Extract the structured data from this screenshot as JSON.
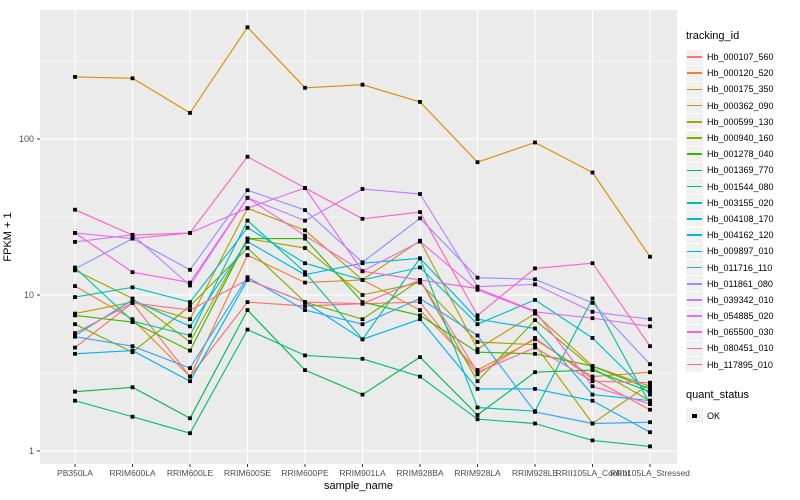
{
  "chart_data": {
    "type": "line",
    "title": "",
    "xlabel": "sample_name",
    "ylabel": "FPKM + 1",
    "yscale": "log10",
    "ylim": [
      0.83,
      672
    ],
    "yticks": [
      1,
      10,
      100
    ],
    "grid": {
      "major": [
        1,
        10,
        100
      ],
      "minor": [
        3.162,
        31.62,
        316.2
      ],
      "vertical_major": true
    },
    "legend_title": "tracking_id",
    "legend2_title": "quant_status",
    "legend2_items": [
      {
        "label": "OK",
        "marker": "black-square"
      }
    ],
    "categories": [
      "PB350LA",
      "RRIM600LA",
      "RRIM600LE",
      "RRIM600SE",
      "RRIM600PE",
      "RRIM901LA",
      "RRIM928BA",
      "RRIM928LA",
      "RRIM928LE",
      "RRII105LA_Control",
      "RRII105LA_Stressed"
    ],
    "series": [
      {
        "name": "Hb_000107_560",
        "color": "#F8766D",
        "values": [
          4.6,
          8.9,
          3.0,
          9.0,
          8.5,
          8.8,
          9.0,
          3.1,
          5.3,
          2.9,
          1.84
        ]
      },
      {
        "name": "Hb_000120_520",
        "color": "#EA8331",
        "values": [
          11.4,
          7.0,
          3.0,
          18.0,
          12.0,
          12.5,
          8.0,
          3.3,
          5.2,
          3.0,
          3.2
        ]
      },
      {
        "name": "Hb_000175_350",
        "color": "#D89000",
        "values": [
          250,
          245,
          147,
          520,
          213,
          223,
          173,
          71,
          95,
          61,
          17.6
        ]
      },
      {
        "name": "Hb_000362_090",
        "color": "#C09B00",
        "values": [
          7.6,
          9.0,
          7.0,
          36.0,
          26.0,
          12.5,
          22.3,
          4.5,
          7.6,
          3.5,
          2.6
        ]
      },
      {
        "name": "Hb_000599_130",
        "color": "#A3A500",
        "values": [
          14.4,
          9.5,
          5.0,
          23.0,
          20.0,
          10.0,
          12.0,
          5.0,
          4.8,
          1.5,
          2.7
        ]
      },
      {
        "name": "Hb_000940_160",
        "color": "#7CAE00",
        "values": [
          6.5,
          4.3,
          8.5,
          20.0,
          9.0,
          7.0,
          12.5,
          2.8,
          6.9,
          3.4,
          2.1
        ]
      },
      {
        "name": "Hb_001278_040",
        "color": "#39B600",
        "values": [
          7.4,
          6.7,
          4.4,
          23.0,
          23.0,
          9.0,
          7.4,
          4.3,
          4.2,
          3.5,
          2.5
        ]
      },
      {
        "name": "Hb_001369_770",
        "color": "#00BB4E",
        "values": [
          2.4,
          2.56,
          1.62,
          8.0,
          3.3,
          2.3,
          4.0,
          1.7,
          3.2,
          3.3,
          2.4
        ]
      },
      {
        "name": "Hb_001544_080",
        "color": "#00BF7D",
        "values": [
          2.1,
          1.66,
          1.3,
          6.0,
          4.1,
          3.9,
          3.0,
          1.6,
          1.5,
          1.17,
          1.07
        ]
      },
      {
        "name": "Hb_003155_020",
        "color": "#00C1A3",
        "values": [
          15.0,
          6.8,
          5.5,
          30.0,
          14.0,
          5.2,
          17.2,
          1.9,
          1.8,
          9.5,
          2.0
        ]
      },
      {
        "name": "Hb_004108_170",
        "color": "#00BFC4",
        "values": [
          9.7,
          11.2,
          9.0,
          27.0,
          16.0,
          12.5,
          15.0,
          6.5,
          9.3,
          5.3,
          2.3
        ]
      },
      {
        "name": "Hb_004162_120",
        "color": "#00BAE0",
        "values": [
          5.5,
          9.3,
          6.3,
          22.0,
          13.5,
          16.0,
          17.2,
          7.0,
          6.1,
          2.3,
          2.1
        ]
      },
      {
        "name": "Hb_009897_010",
        "color": "#00B0F6",
        "values": [
          4.2,
          4.4,
          2.8,
          12.5,
          9.0,
          5.2,
          7.0,
          2.5,
          2.5,
          2.1,
          1.32
        ]
      },
      {
        "name": "Hb_011716_110",
        "color": "#35A2FF",
        "values": [
          5.4,
          4.7,
          3.4,
          13.0,
          8.0,
          6.5,
          9.5,
          5.5,
          1.78,
          1.5,
          1.53
        ]
      },
      {
        "name": "Hb_011861_080",
        "color": "#9590FF",
        "values": [
          14.7,
          23.0,
          14.5,
          47.0,
          35.0,
          16.2,
          31.0,
          12.9,
          12.6,
          8.9,
          3.6
        ]
      },
      {
        "name": "Hb_039342_010",
        "color": "#C77CFF",
        "values": [
          21.9,
          24.3,
          11.5,
          42.0,
          30.0,
          47.8,
          44.4,
          11.3,
          11.7,
          7.8,
          7.0
        ]
      },
      {
        "name": "Hb_054885_020",
        "color": "#E76BF3",
        "values": [
          25.0,
          23.0,
          25.0,
          36.0,
          48.5,
          14.2,
          22.0,
          10.8,
          7.8,
          7.1,
          6.3
        ]
      },
      {
        "name": "Hb_065500_030",
        "color": "#FA62DB",
        "values": [
          25.0,
          14.0,
          12.0,
          42.0,
          24.0,
          14.2,
          12.5,
          11.0,
          7.9,
          2.6,
          2.0
        ]
      },
      {
        "name": "Hb_080451_010",
        "color": "#FF62BC",
        "values": [
          35.2,
          24.2,
          25.0,
          77.0,
          48.5,
          30.8,
          34.0,
          7.4,
          14.8,
          16.0,
          4.7
        ]
      },
      {
        "name": "Hb_117895_010",
        "color": "#FF6A98",
        "values": [
          5.7,
          8.9,
          8.0,
          12.5,
          9.0,
          8.8,
          12.5,
          3.2,
          4.6,
          2.8,
          2.74
        ]
      }
    ]
  },
  "style": {
    "panel_bg": "#EBEBEB",
    "grid_color": "#FFFFFF",
    "tick_color": "#333333",
    "tick_label_color": "#4D4D4D",
    "text_color": "#000000",
    "legend_key_bg": "#F1F1F1",
    "point_color": "#000000"
  }
}
